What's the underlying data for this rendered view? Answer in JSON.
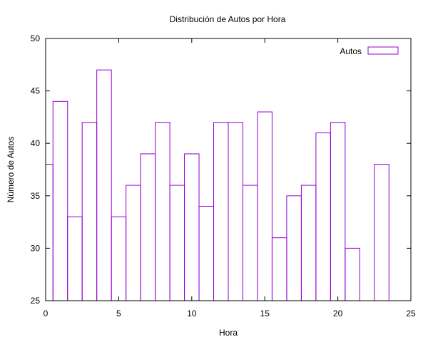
{
  "chart_data": {
    "type": "bar",
    "title": "Distribución de Autos por Hora",
    "xlabel": "Hora",
    "ylabel": "Número de Autos",
    "xlim": [
      0,
      25
    ],
    "ylim": [
      25,
      50
    ],
    "xticks": [
      0,
      5,
      10,
      15,
      20,
      25
    ],
    "yticks": [
      25,
      30,
      35,
      40,
      45,
      50
    ],
    "grid": false,
    "legend_position": "top-right",
    "bar_color": "#9400d3",
    "series": [
      {
        "name": "Autos",
        "x": [
          0,
          1,
          2,
          3,
          4,
          5,
          6,
          7,
          8,
          9,
          10,
          11,
          12,
          13,
          14,
          15,
          16,
          17,
          18,
          19,
          20,
          21,
          22,
          23
        ],
        "values": [
          38,
          44,
          33,
          42,
          47,
          33,
          36,
          39,
          42,
          36,
          39,
          34,
          42,
          42,
          36,
          43,
          31,
          35,
          36,
          41,
          42,
          30,
          25,
          38
        ]
      }
    ]
  }
}
